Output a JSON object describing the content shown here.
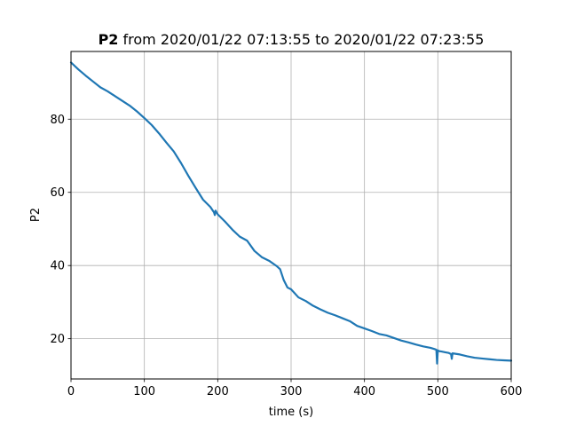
{
  "chart_data": {
    "type": "line",
    "title_bold": "P2",
    "title_rest": " from 2020/01/22 07:13:55 to 2020/01/22 07:23:55",
    "xlabel": "time (s)",
    "ylabel": "P2",
    "xlim": [
      0,
      600
    ],
    "ylim": [
      9,
      98.5
    ],
    "xticks": [
      0,
      100,
      200,
      300,
      400,
      500,
      600
    ],
    "xtick_labels": [
      "0",
      "100",
      "200",
      "300",
      "400",
      "500",
      "600"
    ],
    "yticks": [
      20,
      40,
      60,
      80
    ],
    "ytick_labels": [
      "20",
      "40",
      "60",
      "80"
    ],
    "grid": true,
    "legend": "none",
    "series": [
      {
        "color": "#1f77b4",
        "x": [
          0,
          10,
          20,
          30,
          40,
          50,
          60,
          70,
          80,
          90,
          100,
          110,
          120,
          130,
          140,
          150,
          160,
          170,
          180,
          190,
          195,
          196,
          197,
          200,
          210,
          220,
          230,
          240,
          250,
          260,
          270,
          280,
          285,
          290,
          295,
          300,
          310,
          320,
          330,
          340,
          350,
          360,
          370,
          380,
          390,
          400,
          410,
          420,
          430,
          440,
          450,
          460,
          470,
          480,
          490,
          495,
          498,
          499,
          500,
          502,
          505,
          510,
          515,
          518,
          519,
          520,
          530,
          540,
          550,
          560,
          570,
          580,
          590,
          600
        ],
        "y": [
          95.5,
          93.6,
          91.9,
          90.3,
          88.7,
          87.6,
          86.3,
          85.0,
          83.7,
          82.1,
          80.3,
          78.4,
          76.1,
          73.6,
          71.2,
          68.0,
          64.5,
          61.2,
          58.0,
          56.0,
          54.5,
          53.8,
          55.0,
          54.0,
          52.0,
          49.8,
          47.9,
          46.8,
          44.0,
          42.3,
          41.3,
          39.9,
          39.0,
          36.0,
          34.0,
          33.5,
          31.3,
          30.3,
          29.0,
          28.0,
          27.1,
          26.4,
          25.6,
          24.8,
          23.5,
          22.8,
          22.1,
          21.3,
          20.9,
          20.2,
          19.5,
          19.0,
          18.4,
          17.9,
          17.5,
          17.2,
          17.0,
          13.2,
          16.8,
          16.6,
          16.5,
          16.3,
          16.1,
          15.8,
          14.5,
          16.0,
          15.7,
          15.2,
          14.8,
          14.6,
          14.4,
          14.2,
          14.1,
          14.0
        ]
      }
    ]
  }
}
